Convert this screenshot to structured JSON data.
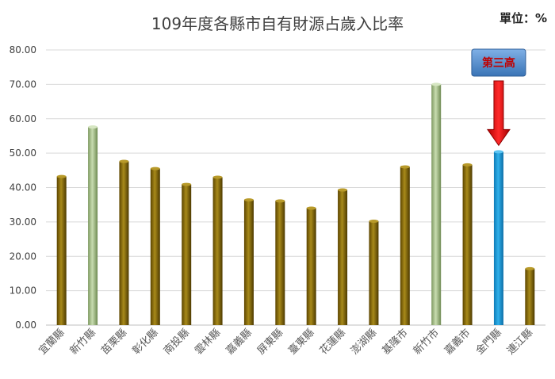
{
  "chart_data": {
    "type": "bar",
    "title": "109年度各縣市自有財源占歲入比率",
    "unit_label": "單位：%",
    "ylim": [
      0,
      80
    ],
    "yticks": [
      "0.00",
      "10.00",
      "20.00",
      "30.00",
      "40.00",
      "50.00",
      "60.00",
      "70.00",
      "80.00"
    ],
    "grid": true,
    "categories": [
      "宜蘭縣",
      "新竹縣",
      "苗栗縣",
      "彰化縣",
      "南投縣",
      "雲林縣",
      "嘉義縣",
      "屏東縣",
      "臺東縣",
      "花蓮縣",
      "澎湖縣",
      "基隆市",
      "新竹市",
      "嘉義市",
      "金門縣",
      "連江縣"
    ],
    "values": [
      43.2,
      57.6,
      47.6,
      45.5,
      40.9,
      43.0,
      36.4,
      36.1,
      34.0,
      39.3,
      30.2,
      46.0,
      70.0,
      46.6,
      50.4,
      16.4
    ],
    "highlight": {
      "green": [
        "新竹縣",
        "新竹市"
      ],
      "blue": [
        "金門縣"
      ]
    },
    "callout": {
      "text": "第三高",
      "target": "金門縣"
    },
    "colors": {
      "default": "#7f6000",
      "green": "#a9c48c",
      "blue": "#1a9ad6",
      "arrow": "#e01010",
      "callout_box": "#4a86c5",
      "callout_text": "#c00000"
    }
  }
}
